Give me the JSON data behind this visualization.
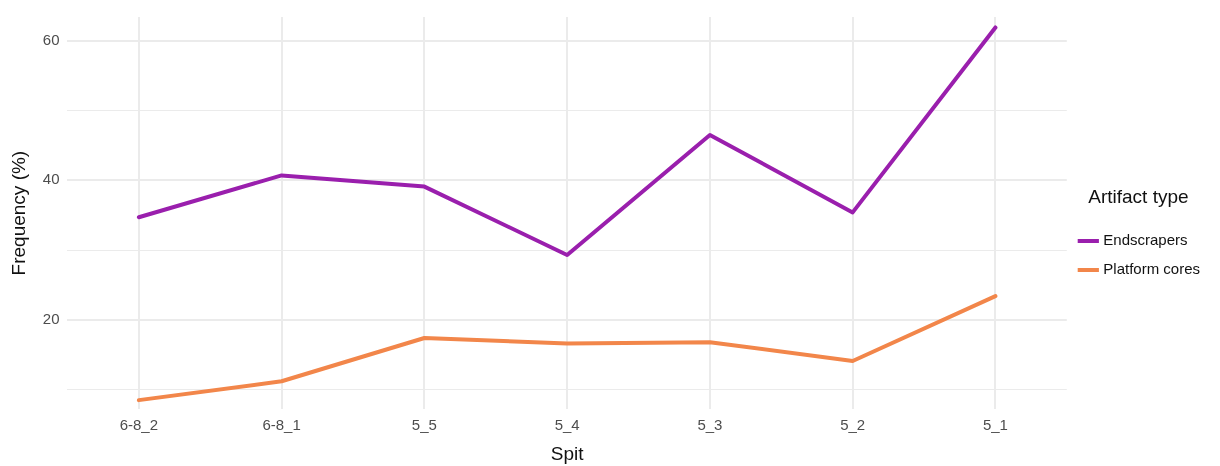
{
  "chart_data": {
    "type": "line",
    "xlabel": "Spit",
    "ylabel": "Frequency (%)",
    "legend_title": "Artifact type",
    "legend": "right",
    "grid": true,
    "marker": "none",
    "line_style": "solid",
    "categories": [
      "6-8_2",
      "6-8_1",
      "5_5",
      "5_4",
      "5_3",
      "5_2",
      "5_1"
    ],
    "ylim": [
      7.2,
      63.4
    ],
    "yticks": [
      {
        "value": 10,
        "label": null
      },
      20,
      {
        "value": 30,
        "label": null
      },
      40,
      {
        "value": 50,
        "label": null
      },
      60
    ],
    "series": [
      {
        "name": "Endscrapers",
        "color": "#9a1fad",
        "values": [
          34.7,
          40.7,
          39.1,
          29.3,
          46.5,
          35.4,
          61.9
        ]
      },
      {
        "name": "Platform cores",
        "color": "#f2864a",
        "values": [
          8.5,
          11.2,
          17.4,
          16.6,
          16.8,
          14.1,
          23.4
        ]
      }
    ]
  }
}
